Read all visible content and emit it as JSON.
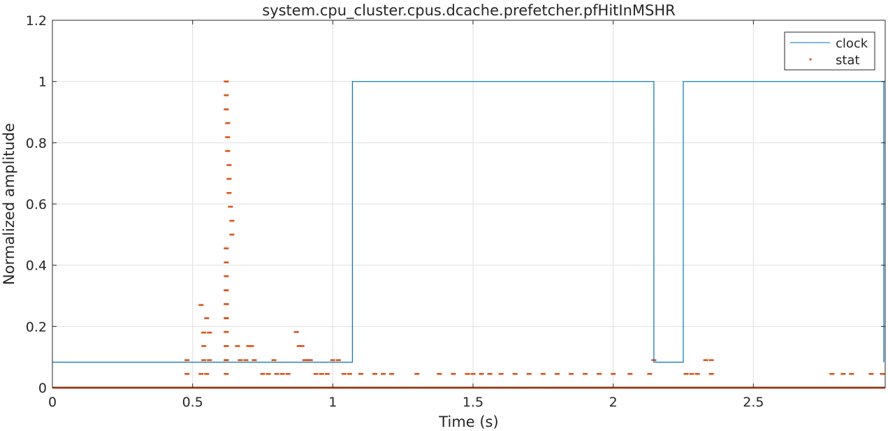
{
  "chart_data": {
    "type": "scatter",
    "title": "system.cpu_cluster.cpus.dcache.prefetcher.pfHitInMSHR",
    "xlabel": "Time (s)",
    "ylabel": "Normalized amplitude",
    "xlim": [
      0,
      2.97
    ],
    "ylim": [
      0,
      1.2
    ],
    "xticks": [
      0,
      0.5,
      1,
      1.5,
      2,
      2.5
    ],
    "xtick_labels": [
      "0",
      "0.5",
      "1",
      "1.5",
      "2",
      "2.5"
    ],
    "yticks": [
      0,
      0.2,
      0.4,
      0.6,
      0.8,
      1,
      1.2
    ],
    "ytick_labels": [
      "0",
      "0.2",
      "0.4",
      "0.6",
      "0.8",
      "1",
      "1.2"
    ],
    "grid": true,
    "legend_position": "top-right",
    "colors": {
      "clock": "#0072BD",
      "stat": "#D95319"
    },
    "series": [
      {
        "name": "clock",
        "kind": "step-line",
        "x": [
          0,
          1.07,
          1.07,
          2.145,
          2.145,
          2.25,
          2.25,
          2.965,
          2.965
        ],
        "y": [
          0.0833,
          0.0833,
          1,
          1,
          0.0833,
          0.0833,
          1,
          1,
          0.0833
        ]
      },
      {
        "name": "stat",
        "kind": "points",
        "baseline": {
          "y": 0,
          "x_range": [
            0,
            2.97
          ]
        },
        "x": [
          0.48,
          0.48,
          0.53,
          0.53,
          0.54,
          0.54,
          0.54,
          0.55,
          0.55,
          0.56,
          0.56,
          0.62,
          0.62,
          0.62,
          0.625,
          0.625,
          0.625,
          0.63,
          0.63,
          0.63,
          0.635,
          0.64,
          0.64,
          0.62,
          0.62,
          0.62,
          0.62,
          0.62,
          0.62,
          0.62,
          0.62,
          0.62,
          0.62,
          0.62,
          0.62,
          0.62,
          0.62,
          0.62,
          0.62,
          0.66,
          0.67,
          0.69,
          0.7,
          0.71,
          0.72,
          0.75,
          0.77,
          0.79,
          0.8,
          0.82,
          0.84,
          0.87,
          0.88,
          0.89,
          0.9,
          0.91,
          0.92,
          0.94,
          0.96,
          0.98,
          1.0,
          1.02,
          1.04,
          1.06,
          1.1,
          1.15,
          1.18,
          1.21,
          1.3,
          1.38,
          1.43,
          1.48,
          1.5,
          1.53,
          1.56,
          1.6,
          1.65,
          1.7,
          1.75,
          1.8,
          1.85,
          1.9,
          1.95,
          2.0,
          2.06,
          2.13,
          2.145,
          2.26,
          2.28,
          2.3,
          2.33,
          2.35,
          2.35,
          2.78,
          2.82,
          2.85,
          2.92,
          2.96
        ],
        "y": [
          0.09,
          0.045,
          0.27,
          0.045,
          0.18,
          0.136,
          0.09,
          0.227,
          0.045,
          0.18,
          0.09,
          1.0,
          0.955,
          0.909,
          0.864,
          0.818,
          0.773,
          0.727,
          0.682,
          0.636,
          0.591,
          0.545,
          0.5,
          0.455,
          0.409,
          0.364,
          0.318,
          0.273,
          0.227,
          0.182,
          0.136,
          0.09,
          0.045,
          0.318,
          0.273,
          0.227,
          0.182,
          0.136,
          0.09,
          0.136,
          0.09,
          0.09,
          0.136,
          0.136,
          0.09,
          0.045,
          0.045,
          0.09,
          0.045,
          0.045,
          0.045,
          0.182,
          0.136,
          0.136,
          0.09,
          0.09,
          0.09,
          0.045,
          0.045,
          0.045,
          0.09,
          0.09,
          0.045,
          0.045,
          0.045,
          0.045,
          0.045,
          0.045,
          0.045,
          0.045,
          0.045,
          0.045,
          0.045,
          0.045,
          0.045,
          0.045,
          0.045,
          0.045,
          0.045,
          0.045,
          0.045,
          0.045,
          0.045,
          0.045,
          0.045,
          0.045,
          0.09,
          0.045,
          0.045,
          0.045,
          0.09,
          0.09,
          0.045,
          0.045,
          0.045,
          0.045,
          0.045,
          0.045
        ]
      }
    ]
  }
}
